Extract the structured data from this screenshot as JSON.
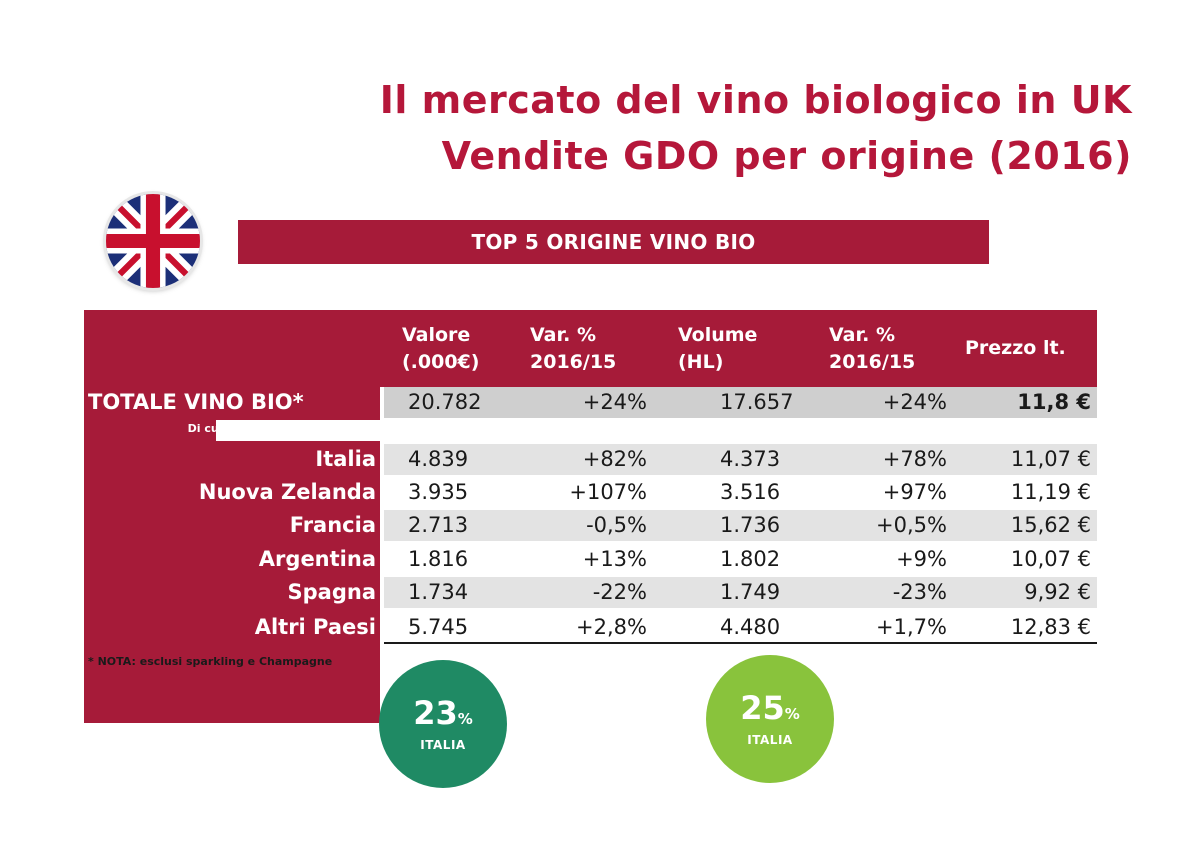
{
  "title_line1": "Il mercato del vino biologico in UK",
  "title_line2": "Vendite GDO per origine (2016)",
  "banner": "TOP 5 ORIGINE VINO BIO",
  "colors": {
    "accent": "#a61b39",
    "green_dark": "#1f8a64",
    "green_light": "#89c33c"
  },
  "chart_data": {
    "type": "table",
    "columns": [
      {
        "key": "valore",
        "line1": "Valore",
        "line2": "(.000€)"
      },
      {
        "key": "var_valore",
        "line1": "Var. %",
        "line2": "2016/15"
      },
      {
        "key": "volume",
        "line1": "Volume",
        "line2": "(HL)"
      },
      {
        "key": "var_volume",
        "line1": "Var. %",
        "line2": "2016/15"
      },
      {
        "key": "prezzo",
        "line1": "Prezzo lt.",
        "line2": ""
      }
    ],
    "total": {
      "label": "TOTALE VINO BIO*",
      "valore": "20.782",
      "var_valore": "+24%",
      "volume": "17.657",
      "var_volume": "+24%",
      "prezzo": "11,8 €"
    },
    "subheader": "Di cui da:",
    "rows": [
      {
        "label": "Italia",
        "valore": "4.839",
        "var_valore": "+82%",
        "volume": "4.373",
        "var_volume": "+78%",
        "prezzo": "11,07 €"
      },
      {
        "label": "Nuova Zelanda",
        "valore": "3.935",
        "var_valore": "+107%",
        "volume": "3.516",
        "var_volume": "+97%",
        "prezzo": "11,19 €"
      },
      {
        "label": "Francia",
        "valore": "2.713",
        "var_valore": "-0,5%",
        "volume": "1.736",
        "var_volume": "+0,5%",
        "prezzo": "15,62 €"
      },
      {
        "label": "Argentina",
        "valore": "1.816",
        "var_valore": "+13%",
        "volume": "1.802",
        "var_volume": "+9%",
        "prezzo": "10,07 €"
      },
      {
        "label": "Spagna",
        "valore": "1.734",
        "var_valore": "-22%",
        "volume": "1.749",
        "var_volume": "-23%",
        "prezzo": "9,92 €"
      },
      {
        "label": "Altri Paesi",
        "valore": "5.745",
        "var_valore": "+2,8%",
        "volume": "4.480",
        "var_volume": "+1,7%",
        "prezzo": "12,83 €"
      }
    ]
  },
  "note": "* NOTA: esclusi sparkling e Champagne",
  "badges": [
    {
      "value": "23",
      "unit": "%",
      "label": "ITALIA"
    },
    {
      "value": "25",
      "unit": "%",
      "label": "ITALIA"
    }
  ]
}
